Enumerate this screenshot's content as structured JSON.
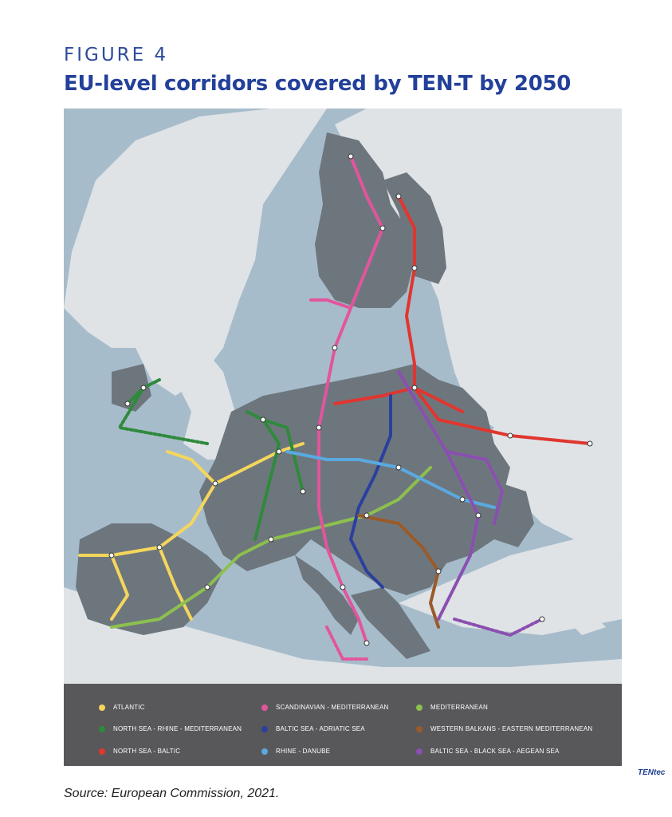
{
  "figure_label": "FIGURE 4",
  "title": "EU-level corridors covered by TEN-T by 2050",
  "source": "Source: European Commission, 2021.",
  "logo_text": "TENtec",
  "legend": [
    {
      "label": "ATLANTIC",
      "color": "#f5d65c"
    },
    {
      "label": "SCANDINAVIAN - MEDITERRANEAN",
      "color": "#e2559d"
    },
    {
      "label": "MEDITERRANEAN",
      "color": "#8cc04f"
    },
    {
      "label": "NORTH SEA - RHINE - MEDITERRANEAN",
      "color": "#2f8a3c"
    },
    {
      "label": "BALTIC SEA - ADRIATIC SEA",
      "color": "#2a3f9e"
    },
    {
      "label": "WESTERN BALKANS - EASTERN MEDITERRANEAN",
      "color": "#9a5a2a"
    },
    {
      "label": "NORTH SEA - BALTIC",
      "color": "#e0362f"
    },
    {
      "label": "RHINE - DANUBE",
      "color": "#5aa9e0"
    },
    {
      "label": "BALTIC SEA - BLACK SEA - AEGEAN SEA",
      "color": "#8a4fb0"
    }
  ],
  "colors": {
    "sea": "#a7bccb",
    "non_eu_land": "#dfe3e6",
    "eu_land": "#6e767d",
    "legend_bg": "#58585a",
    "heading": "#23409a"
  }
}
